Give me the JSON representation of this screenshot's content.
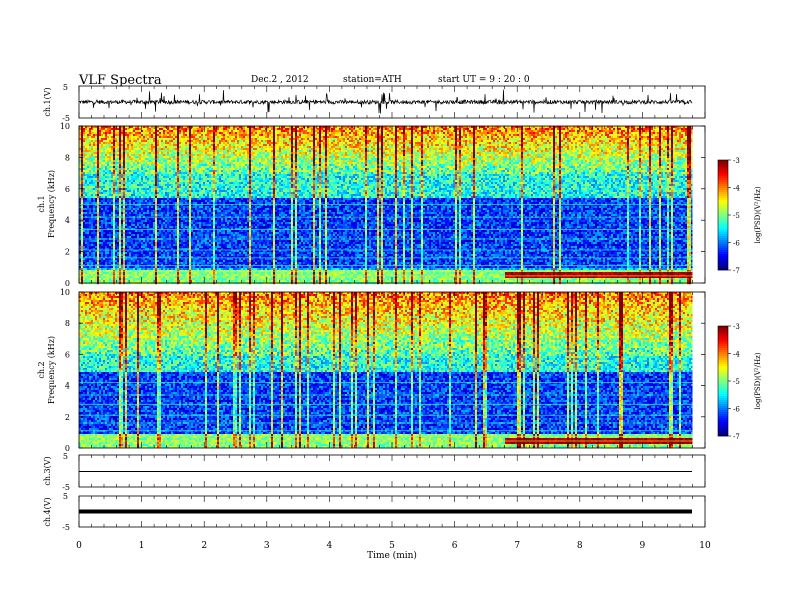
{
  "header": {
    "title": "VLF  Spectra",
    "date": "Dec.2  , 2012",
    "station": "station=ATH",
    "start": "start  UT =   9  : 20 : 0"
  },
  "chart_data": [
    {
      "type": "line",
      "name": "ch1-waveform",
      "ylabel": "ch.1(V)",
      "ylim": [
        -5,
        5
      ],
      "yticks": [
        "5",
        "-5"
      ],
      "xlim": [
        0,
        10
      ],
      "data_end_min": 9.8,
      "baseline_v": 0.0,
      "noise_amplitude_v": 3.5
    },
    {
      "type": "heatmap",
      "name": "ch1-spectrogram",
      "ylabel": [
        "ch.1",
        "Frequency  (kHz)"
      ],
      "ylim": [
        0,
        10
      ],
      "yticks": [
        "0",
        "2",
        "4",
        "6",
        "8",
        "10"
      ],
      "xlim": [
        0,
        9.8
      ],
      "colorbar": {
        "label": "log(PSD)(V²/Hz)",
        "range": [
          -7,
          -3
        ],
        "ticks": [
          "-3",
          "-4",
          "-5",
          "-6",
          "-7"
        ]
      },
      "intensity_profile": {
        "high_band_khz": [
          7,
          10
        ],
        "low_band_khz": [
          1,
          5.5
        ],
        "dense_line_khz": [
          0.2,
          0.9
        ],
        "line_onset_min": 6.8
      }
    },
    {
      "type": "heatmap",
      "name": "ch2-spectrogram",
      "ylabel": [
        "ch.2",
        "Frequency  (kHz)"
      ],
      "ylim": [
        0,
        10
      ],
      "yticks": [
        "0",
        "2",
        "4",
        "6",
        "8",
        "10"
      ],
      "xlim": [
        0,
        9.8
      ],
      "colorbar": {
        "label": "log(PSD)(V²/Hz)",
        "range": [
          -7,
          -3
        ],
        "ticks": [
          "-3",
          "-4",
          "-5",
          "-6",
          "-7"
        ]
      },
      "intensity_profile": {
        "high_band_khz": [
          6,
          10
        ],
        "low_band_khz": [
          1,
          5
        ],
        "dense_line_khz": [
          0.2,
          0.9
        ],
        "line_onset_min": 6.8
      }
    },
    {
      "type": "line",
      "name": "ch3-waveform",
      "ylabel": "ch.3(V)",
      "ylim": [
        -5,
        5
      ],
      "yticks": [
        "5",
        "-5"
      ],
      "xlim": [
        0,
        10
      ],
      "data_end_min": 9.8,
      "baseline_v": -0.5
    },
    {
      "type": "line",
      "name": "ch4-waveform",
      "ylabel": "ch.4(V)",
      "ylim": [
        -5,
        5
      ],
      "yticks": [
        "5",
        "-5"
      ],
      "xlim": [
        0,
        10
      ],
      "data_end_min": 9.8,
      "baseline_v": -0.3
    }
  ],
  "xaxis": {
    "label": "Time  (min)",
    "ticks": [
      "0",
      "1",
      "2",
      "3",
      "4",
      "5",
      "6",
      "7",
      "8",
      "9",
      "10"
    ]
  }
}
